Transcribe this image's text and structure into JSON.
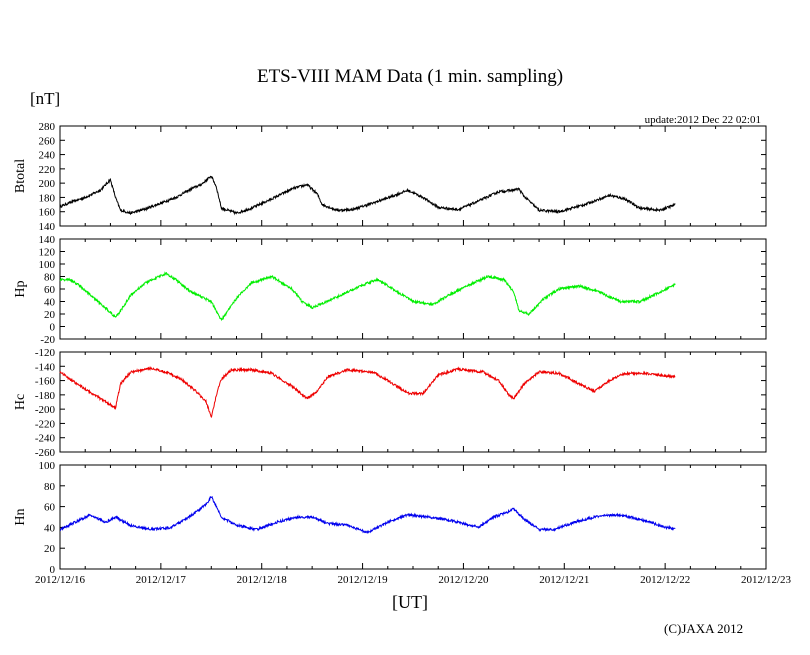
{
  "chart_data": {
    "type": "line",
    "title": "ETS-VIII MAM Data (1 min. sampling)",
    "unit_label": "[nT]",
    "update_text": "update:2012 Dec 22 02:01",
    "xlabel": "[UT]",
    "copyright": "(C)JAXA 2012",
    "x_ticks": [
      "2012/12/16",
      "2012/12/17",
      "2012/12/18",
      "2012/12/19",
      "2012/12/20",
      "2012/12/21",
      "2012/12/22",
      "2012/12/23"
    ],
    "xlim_days": [
      0,
      7
    ],
    "grid": false,
    "panels": [
      {
        "name": "Btotal",
        "color": "#000000",
        "ylim": [
          140,
          280
        ],
        "yticks": [
          140,
          160,
          180,
          200,
          220,
          240,
          260,
          280
        ],
        "series_x_days": [
          0,
          0.1,
          0.25,
          0.4,
          0.5,
          0.55,
          0.6,
          0.7,
          0.85,
          1.0,
          1.15,
          1.3,
          1.4,
          1.5,
          1.55,
          1.6,
          1.75,
          1.9,
          2.1,
          2.3,
          2.45,
          2.55,
          2.6,
          2.75,
          2.9,
          3.1,
          3.3,
          3.45,
          3.6,
          3.75,
          3.95,
          4.15,
          4.35,
          4.48,
          4.55,
          4.6,
          4.75,
          4.95,
          5.2,
          5.45,
          5.6,
          5.75,
          5.95,
          6.1
        ],
        "series_y": [
          167,
          173,
          180,
          190,
          205,
          180,
          162,
          158,
          164,
          172,
          180,
          192,
          198,
          210,
          195,
          165,
          158,
          165,
          178,
          192,
          198,
          185,
          170,
          162,
          163,
          172,
          182,
          190,
          180,
          166,
          163,
          175,
          188,
          190,
          192,
          182,
          162,
          160,
          170,
          183,
          178,
          165,
          162,
          170
        ]
      },
      {
        "name": "Hp",
        "color": "#00ee00",
        "ylim": [
          -20,
          140
        ],
        "yticks": [
          -20,
          0,
          20,
          40,
          60,
          80,
          100,
          120,
          140
        ],
        "series_x_days": [
          0,
          0.1,
          0.2,
          0.3,
          0.45,
          0.55,
          0.6,
          0.7,
          0.85,
          1.05,
          1.15,
          1.3,
          1.5,
          1.6,
          1.75,
          1.9,
          2.1,
          2.3,
          2.4,
          2.5,
          2.65,
          2.85,
          3.05,
          3.15,
          3.3,
          3.5,
          3.7,
          3.85,
          4.1,
          4.25,
          4.4,
          4.5,
          4.55,
          4.65,
          4.8,
          4.95,
          5.15,
          5.35,
          5.55,
          5.75,
          5.95,
          6.1
        ],
        "series_y": [
          75,
          75,
          65,
          50,
          30,
          15,
          25,
          50,
          70,
          85,
          75,
          55,
          40,
          10,
          45,
          70,
          80,
          60,
          40,
          30,
          40,
          55,
          70,
          75,
          60,
          40,
          35,
          50,
          70,
          80,
          75,
          55,
          25,
          20,
          45,
          60,
          65,
          55,
          40,
          40,
          55,
          68
        ]
      },
      {
        "name": "Hc",
        "color": "#ee0000",
        "ylim": [
          -260,
          -120
        ],
        "yticks": [
          -260,
          -240,
          -220,
          -200,
          -180,
          -160,
          -140,
          -120
        ],
        "series_x_days": [
          0,
          0.1,
          0.25,
          0.4,
          0.55,
          0.6,
          0.7,
          0.9,
          1.05,
          1.2,
          1.35,
          1.45,
          1.5,
          1.55,
          1.6,
          1.7,
          1.9,
          2.1,
          2.3,
          2.45,
          2.55,
          2.65,
          2.85,
          3.1,
          3.25,
          3.45,
          3.6,
          3.75,
          3.95,
          4.2,
          4.35,
          4.45,
          4.5,
          4.6,
          4.75,
          4.95,
          5.15,
          5.3,
          5.45,
          5.6,
          5.8,
          6.1
        ],
        "series_y": [
          -148,
          -158,
          -172,
          -185,
          -198,
          -165,
          -148,
          -143,
          -148,
          -158,
          -175,
          -190,
          -212,
          -180,
          -158,
          -145,
          -145,
          -150,
          -168,
          -185,
          -175,
          -155,
          -145,
          -148,
          -160,
          -178,
          -178,
          -152,
          -144,
          -148,
          -160,
          -180,
          -185,
          -165,
          -148,
          -150,
          -165,
          -175,
          -160,
          -150,
          -150,
          -155
        ]
      },
      {
        "name": "Hn",
        "color": "#0000ee",
        "ylim": [
          0,
          100
        ],
        "yticks": [
          0,
          20,
          40,
          60,
          80,
          100
        ],
        "series_x_days": [
          0,
          0.15,
          0.3,
          0.45,
          0.55,
          0.7,
          0.9,
          1.1,
          1.25,
          1.35,
          1.45,
          1.5,
          1.55,
          1.6,
          1.75,
          1.95,
          2.15,
          2.35,
          2.5,
          2.65,
          2.85,
          3.05,
          3.25,
          3.45,
          3.65,
          3.8,
          3.95,
          4.15,
          4.3,
          4.45,
          4.5,
          4.6,
          4.75,
          4.9,
          5.1,
          5.3,
          5.5,
          5.65,
          5.85,
          6.0,
          6.1
        ],
        "series_y": [
          38,
          45,
          52,
          45,
          50,
          42,
          38,
          40,
          48,
          55,
          62,
          70,
          60,
          50,
          42,
          38,
          45,
          50,
          50,
          44,
          42,
          35,
          45,
          52,
          50,
          48,
          45,
          40,
          50,
          55,
          58,
          48,
          38,
          38,
          45,
          50,
          52,
          50,
          45,
          40,
          39
        ]
      }
    ]
  }
}
